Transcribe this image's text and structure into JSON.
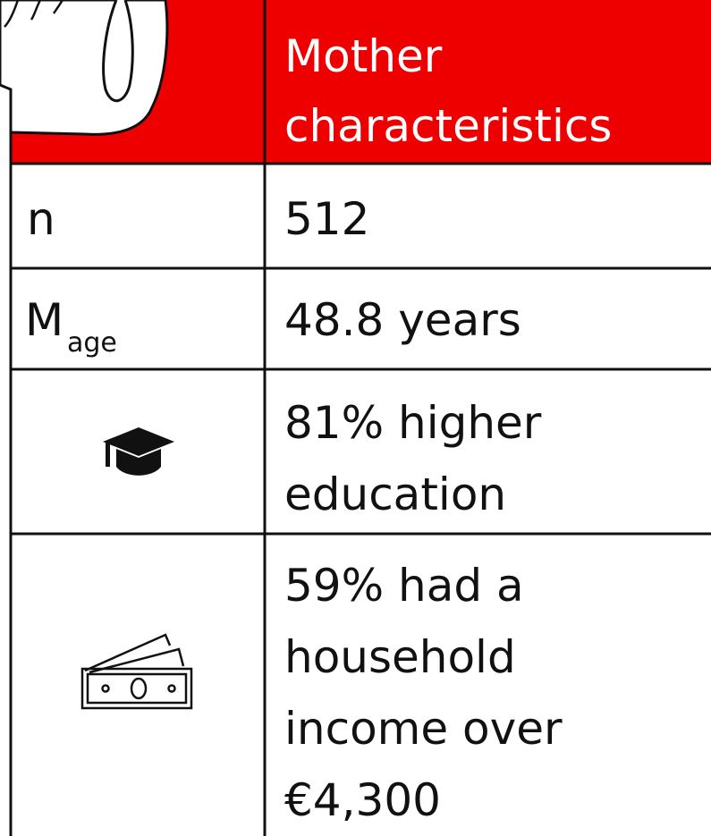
{
  "table": {
    "header": {
      "lines": [
        "Mother",
        "characteristics"
      ]
    },
    "rows": [
      {
        "label": "n",
        "value_lines": [
          "512"
        ]
      },
      {
        "label": "M",
        "label_sub": "age",
        "value_lines": [
          "48.8 years"
        ]
      },
      {
        "value_lines": [
          "81% higher",
          "education"
        ]
      },
      {
        "value_lines": [
          "59% had a",
          "household",
          "income over",
          "€4,300"
        ]
      }
    ]
  }
}
